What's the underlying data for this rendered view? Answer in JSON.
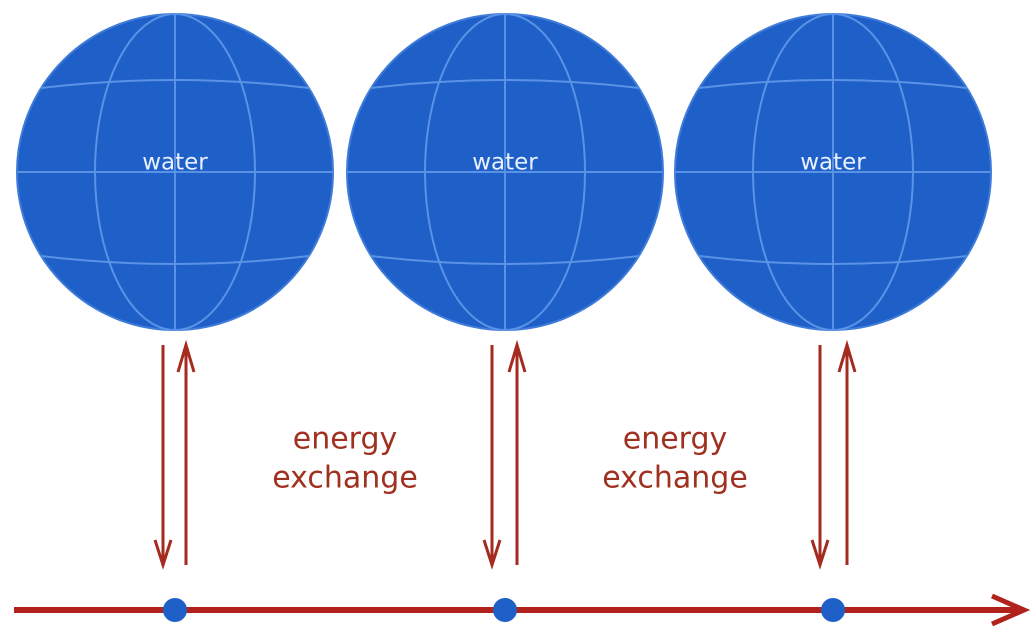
{
  "nodes": [
    {
      "label": "water"
    },
    {
      "label": "water"
    },
    {
      "label": "water"
    }
  ],
  "annotations": [
    {
      "lines": [
        "energy",
        "exchange"
      ]
    },
    {
      "lines": [
        "energy",
        "exchange"
      ]
    }
  ]
}
